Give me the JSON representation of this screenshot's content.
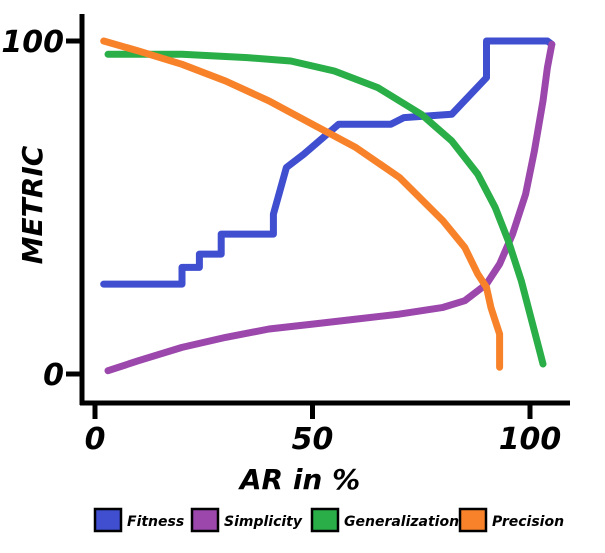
{
  "chart_data": {
    "type": "line",
    "title": "",
    "xlabel": "AR in %",
    "ylabel": "METRIC",
    "xlim": [
      0,
      110
    ],
    "ylim": [
      0,
      100
    ],
    "x_ticks": [
      0,
      50,
      100
    ],
    "x_tick_labels": [
      "0",
      "50",
      "100"
    ],
    "y_ticks": [
      0,
      100
    ],
    "y_tick_labels": [
      "0",
      "100"
    ],
    "grid": false,
    "legend_position": "bottom",
    "series": [
      {
        "name": "Fitness",
        "color": "#3F4FD0",
        "points": [
          [
            2,
            27
          ],
          [
            20,
            27
          ],
          [
            20,
            32
          ],
          [
            24,
            32
          ],
          [
            24,
            36
          ],
          [
            29,
            36
          ],
          [
            29,
            42
          ],
          [
            41,
            42
          ],
          [
            41,
            48
          ],
          [
            44,
            62
          ],
          [
            48,
            66
          ],
          [
            56,
            75
          ],
          [
            68,
            75
          ],
          [
            71,
            77
          ],
          [
            82,
            78
          ],
          [
            90,
            89
          ],
          [
            90,
            100
          ],
          [
            104,
            100
          ],
          [
            105,
            99
          ]
        ]
      },
      {
        "name": "Simplicity",
        "color": "#9B47AC",
        "points": [
          [
            3,
            1
          ],
          [
            10,
            4
          ],
          [
            20,
            8
          ],
          [
            30,
            11
          ],
          [
            40,
            13.5
          ],
          [
            50,
            15
          ],
          [
            60,
            16.5
          ],
          [
            70,
            18
          ],
          [
            80,
            20
          ],
          [
            85,
            22
          ],
          [
            90,
            27
          ],
          [
            93,
            33
          ],
          [
            96,
            42
          ],
          [
            99,
            54
          ],
          [
            101,
            67
          ],
          [
            103,
            82
          ],
          [
            104,
            92
          ],
          [
            105,
            99
          ]
        ]
      },
      {
        "name": "Generalization",
        "color": "#2AAE48",
        "points": [
          [
            3,
            96
          ],
          [
            20,
            96
          ],
          [
            35,
            95
          ],
          [
            45,
            94
          ],
          [
            55,
            91
          ],
          [
            65,
            86
          ],
          [
            75,
            78
          ],
          [
            82,
            70
          ],
          [
            88,
            60
          ],
          [
            92,
            50
          ],
          [
            95,
            40
          ],
          [
            98,
            28
          ],
          [
            100,
            18
          ],
          [
            102,
            8
          ],
          [
            103,
            3
          ]
        ]
      },
      {
        "name": "Precision",
        "color": "#F8822A",
        "points": [
          [
            2,
            100
          ],
          [
            10,
            97
          ],
          [
            20,
            93
          ],
          [
            30,
            88
          ],
          [
            40,
            82
          ],
          [
            50,
            75
          ],
          [
            60,
            68
          ],
          [
            70,
            59
          ],
          [
            80,
            46
          ],
          [
            85,
            38
          ],
          [
            88,
            30
          ],
          [
            90,
            26
          ],
          [
            91,
            20
          ],
          [
            92,
            16
          ],
          [
            93,
            12
          ],
          [
            93,
            2
          ]
        ]
      }
    ]
  }
}
